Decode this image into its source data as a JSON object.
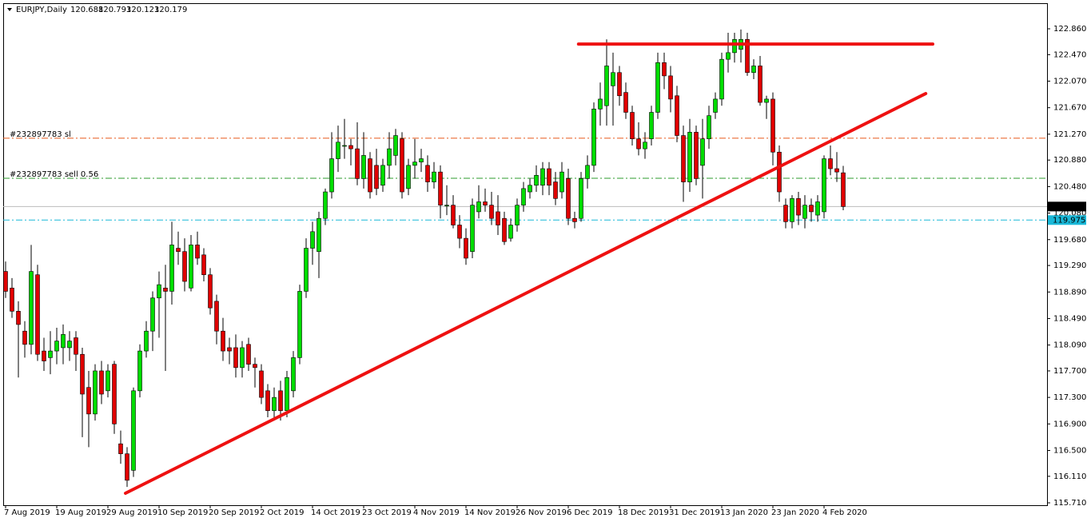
{
  "chart_data": {
    "type": "candlestick",
    "symbol": "EURJPY,Daily",
    "categories": [
      "7 Aug 2019",
      null,
      null,
      null,
      null,
      null,
      null,
      null,
      "19 Aug 2019",
      null,
      null,
      null,
      null,
      null,
      null,
      null,
      "29 Aug 2019",
      null,
      null,
      null,
      null,
      null,
      null,
      null,
      "10 Sep 2019",
      null,
      null,
      null,
      null,
      null,
      null,
      null,
      "20 Sep 2019",
      null,
      null,
      null,
      null,
      null,
      null,
      null,
      "2 Oct 2019",
      null,
      null,
      null,
      null,
      null,
      null,
      null,
      "14 Oct 2019",
      null,
      null,
      null,
      null,
      null,
      null,
      null,
      "23 Oct 2019",
      null,
      null,
      null,
      null,
      null,
      null,
      null,
      "4 Nov 2019",
      null,
      null,
      null,
      null,
      null,
      null,
      null,
      "14 Nov 2019",
      null,
      null,
      null,
      null,
      null,
      null,
      null,
      "26 Nov 2019",
      null,
      null,
      null,
      null,
      null,
      null,
      null,
      "6 Dec 2019",
      null,
      null,
      null,
      null,
      null,
      null,
      null,
      "18 Dec 2019",
      null,
      null,
      null,
      null,
      null,
      null,
      null,
      "31 Dec 2019",
      null,
      null,
      null,
      null,
      null,
      null,
      null,
      "13 Jan 2020",
      null,
      null,
      null,
      null,
      null,
      null,
      null,
      "23 Jan 2020",
      null,
      null,
      null,
      null,
      null,
      null,
      null,
      "4 Feb 2020",
      null,
      null,
      null
    ],
    "open": [
      119.2,
      118.95,
      118.6,
      118.3,
      118.1,
      119.15,
      118.0,
      117.9,
      118.0,
      118.05,
      118.05,
      118.2,
      117.95,
      117.45,
      117.05,
      117.7,
      117.4,
      117.8,
      116.6,
      116.45,
      116.2,
      117.4,
      118.0,
      118.3,
      118.8,
      118.95,
      118.9,
      119.55,
      119.5,
      118.95,
      119.6,
      119.45,
      119.15,
      118.75,
      118.3,
      118.05,
      118.05,
      117.75,
      118.1,
      117.8,
      117.7,
      117.4,
      117.1,
      117.4,
      117.1,
      117.4,
      117.9,
      118.9,
      119.55,
      119.5,
      120.0,
      120.4,
      120.9,
      121.1,
      121.1,
      121.05,
      120.6,
      120.9,
      120.8,
      120.5,
      120.8,
      120.95,
      121.2,
      120.45,
      120.8,
      120.85,
      120.8,
      120.55,
      120.7,
      120.2,
      120.2,
      119.9,
      119.7,
      119.5,
      120.1,
      120.25,
      120.2,
      120.1,
      120.0,
      119.7,
      119.9,
      120.2,
      120.4,
      120.5,
      120.5,
      120.75,
      120.55,
      120.4,
      120.6,
      120.0,
      120.0,
      120.6,
      120.8,
      121.65,
      121.7,
      122.0,
      122.2,
      121.9,
      121.6,
      121.2,
      121.05,
      121.2,
      121.6,
      122.35,
      122.15,
      121.85,
      121.25,
      120.55,
      121.3,
      120.8,
      121.2,
      121.6,
      121.8,
      122.4,
      122.5,
      122.55,
      122.7,
      122.2,
      122.3,
      121.75,
      121.8,
      121.0,
      120.2,
      119.95,
      120.3,
      120.0,
      120.2,
      120.05,
      120.1,
      120.9,
      120.75,
      120.688
    ],
    "high": [
      119.35,
      119.1,
      118.75,
      118.45,
      119.6,
      119.3,
      118.2,
      118.3,
      118.35,
      118.4,
      118.3,
      118.3,
      118.05,
      117.7,
      117.8,
      117.85,
      117.8,
      117.85,
      116.8,
      116.55,
      117.45,
      118.1,
      118.45,
      118.9,
      119.2,
      119.3,
      119.95,
      119.8,
      119.7,
      119.75,
      119.8,
      119.55,
      119.25,
      118.85,
      118.5,
      118.2,
      118.25,
      118.15,
      118.2,
      117.9,
      117.8,
      117.5,
      117.45,
      117.55,
      117.7,
      118.0,
      119.0,
      119.7,
      119.95,
      120.1,
      120.45,
      121.3,
      121.4,
      121.5,
      121.2,
      121.45,
      121.3,
      121.0,
      121.05,
      120.9,
      121.3,
      121.35,
      121.3,
      120.9,
      121.2,
      121.05,
      120.95,
      120.85,
      120.8,
      120.5,
      120.35,
      120.05,
      119.85,
      120.3,
      120.5,
      120.45,
      120.4,
      120.35,
      120.1,
      120.0,
      120.3,
      120.55,
      120.6,
      120.8,
      120.85,
      120.85,
      120.7,
      120.85,
      120.75,
      120.1,
      120.7,
      120.95,
      121.75,
      122.05,
      122.7,
      122.5,
      122.3,
      122.05,
      121.7,
      121.45,
      121.3,
      121.7,
      122.5,
      122.5,
      122.3,
      122.0,
      121.4,
      121.5,
      121.4,
      121.5,
      121.7,
      121.9,
      122.5,
      122.8,
      122.8,
      122.85,
      122.8,
      122.4,
      122.45,
      121.85,
      121.9,
      121.1,
      120.3,
      120.35,
      120.4,
      120.35,
      120.3,
      120.35,
      120.95,
      121.1,
      121.0,
      120.793
    ],
    "low": [
      118.8,
      118.5,
      117.6,
      117.9,
      117.95,
      117.85,
      117.7,
      117.65,
      117.8,
      117.8,
      117.85,
      117.7,
      116.7,
      116.55,
      116.95,
      117.2,
      117.3,
      116.75,
      116.3,
      115.95,
      116.1,
      117.3,
      117.9,
      118.0,
      118.2,
      117.7,
      118.7,
      119.3,
      118.9,
      118.9,
      119.3,
      119.05,
      118.55,
      118.1,
      117.85,
      117.8,
      117.6,
      117.6,
      117.7,
      117.45,
      117.2,
      117.0,
      116.95,
      116.95,
      117.0,
      117.3,
      117.8,
      118.8,
      119.3,
      119.1,
      119.9,
      120.3,
      120.7,
      120.9,
      120.8,
      120.5,
      120.45,
      120.3,
      120.35,
      120.4,
      120.6,
      120.8,
      120.3,
      120.35,
      120.6,
      120.7,
      120.4,
      120.45,
      120.0,
      120.05,
      119.85,
      119.55,
      119.3,
      119.4,
      120.0,
      120.1,
      119.9,
      119.75,
      119.6,
      119.65,
      119.8,
      120.1,
      120.3,
      120.4,
      120.35,
      120.35,
      120.2,
      120.3,
      119.9,
      119.85,
      119.95,
      120.45,
      120.7,
      121.4,
      121.4,
      121.4,
      121.7,
      121.5,
      121.1,
      120.95,
      120.9,
      121.1,
      121.5,
      121.95,
      121.6,
      121.15,
      120.25,
      120.4,
      120.5,
      120.3,
      121.05,
      121.5,
      121.7,
      122.2,
      122.35,
      122.35,
      122.15,
      122.1,
      121.7,
      121.5,
      120.8,
      120.25,
      119.85,
      119.85,
      119.9,
      119.85,
      119.95,
      119.95,
      120.0,
      120.65,
      120.55,
      120.123
    ],
    "close": [
      118.9,
      118.6,
      118.4,
      118.1,
      119.2,
      117.95,
      117.85,
      118.0,
      118.15,
      118.25,
      118.15,
      117.95,
      117.35,
      117.05,
      117.7,
      117.35,
      117.7,
      116.9,
      116.45,
      116.05,
      117.4,
      118.0,
      118.3,
      118.8,
      119.0,
      118.9,
      119.6,
      119.5,
      119.05,
      119.6,
      119.4,
      119.15,
      118.65,
      118.3,
      118.0,
      118.0,
      117.75,
      118.05,
      117.8,
      117.75,
      117.3,
      117.1,
      117.3,
      117.1,
      117.6,
      117.9,
      118.9,
      119.55,
      119.8,
      120.0,
      120.4,
      120.9,
      121.15,
      121.1,
      121.05,
      120.6,
      120.95,
      120.4,
      120.45,
      120.8,
      121.05,
      121.25,
      120.4,
      120.8,
      120.85,
      120.9,
      120.55,
      120.7,
      120.2,
      120.2,
      119.9,
      119.7,
      119.4,
      120.2,
      120.25,
      120.2,
      120.0,
      119.9,
      119.65,
      119.9,
      120.2,
      120.45,
      120.5,
      120.65,
      120.75,
      120.5,
      120.3,
      120.7,
      120.0,
      119.95,
      120.6,
      120.8,
      121.65,
      121.8,
      122.3,
      122.2,
      121.85,
      121.6,
      121.2,
      121.05,
      121.15,
      121.6,
      122.35,
      122.15,
      121.8,
      121.25,
      120.55,
      121.3,
      120.6,
      121.2,
      121.55,
      121.8,
      122.4,
      122.5,
      122.7,
      122.7,
      122.2,
      122.3,
      121.75,
      121.8,
      121.0,
      120.4,
      119.95,
      120.3,
      120.05,
      120.2,
      120.1,
      120.25,
      120.9,
      120.75,
      120.7,
      120.179
    ],
    "up_color": "#00dd00",
    "down_color": "#e00000",
    "wick_color": "#000000",
    "ylim": [
      115.674,
      123.246
    ],
    "yticks": [
      {
        "value": 122.86,
        "label": "122.860"
      },
      {
        "value": 122.47,
        "label": "122.470"
      },
      {
        "value": 122.07,
        "label": "122.070"
      },
      {
        "value": 121.67,
        "label": "121.670"
      },
      {
        "value": 121.27,
        "label": "121.270"
      },
      {
        "value": 120.88,
        "label": "120.880"
      },
      {
        "value": 120.48,
        "label": "120.480"
      },
      {
        "value": 120.08,
        "label": "120.080"
      },
      {
        "value": 119.68,
        "label": "119.680"
      },
      {
        "value": 119.29,
        "label": "119.290"
      },
      {
        "value": 118.89,
        "label": "118.890"
      },
      {
        "value": 118.49,
        "label": "118.490"
      },
      {
        "value": 118.09,
        "label": "118.090"
      },
      {
        "value": 117.7,
        "label": "117.700"
      },
      {
        "value": 117.3,
        "label": "117.300"
      },
      {
        "value": 116.9,
        "label": "116.900"
      },
      {
        "value": 116.5,
        "label": "116.500"
      },
      {
        "value": 116.11,
        "label": "116.110"
      },
      {
        "value": 115.71,
        "label": "115.710"
      }
    ],
    "levels": [
      {
        "label": "#232897783 sl",
        "value": 121.21,
        "color": "#e8591a"
      },
      {
        "label": "#232897783 sell 0.56",
        "value": 120.605,
        "color": "#2e9b2e"
      },
      {
        "value": 119.975,
        "color": "#1ab8d8"
      }
    ],
    "trendlines": [
      {
        "x": [
          18.75,
          143.9
        ],
        "y": [
          115.855,
          121.883
        ],
        "color": "#ee1111"
      },
      {
        "x": [
          89.6,
          145
        ],
        "y": [
          122.63,
          122.63
        ],
        "color": "#ee1111"
      }
    ]
  }
}
